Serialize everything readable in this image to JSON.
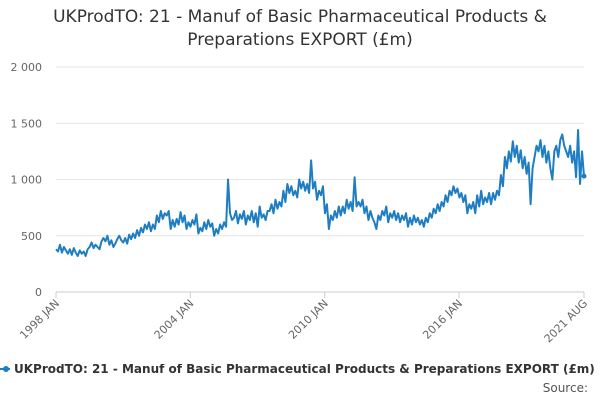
{
  "chart_data": {
    "type": "line",
    "title_line1": "UKProdTO: 21 - Manuf of Basic Pharmaceutical Products &",
    "title_line2": "Preparations EXPORT (£m)",
    "xlabel": "",
    "ylabel": "",
    "ylim": [
      0,
      2000
    ],
    "y_ticks": [
      "2 000",
      "1 500",
      "1 000",
      "500",
      "0"
    ],
    "x_ticks": [
      "1998 JAN",
      "2004 JAN",
      "2010 JAN",
      "2016 JAN",
      "2021 AUG"
    ],
    "series_color": "#1f7dc1",
    "series": [
      {
        "name": "UKProdTO: 21 - Manuf of Basic Pharmaceutical Products & Preparations EXPORT (£m)",
        "x_start": "1998 JAN",
        "x_end": "2021 AUG",
        "values": [
          380,
          360,
          420,
          350,
          400,
          370,
          340,
          380,
          330,
          390,
          350,
          320,
          370,
          340,
          360,
          320,
          380,
          400,
          440,
          390,
          420,
          400,
          380,
          450,
          480,
          450,
          500,
          420,
          460,
          400,
          430,
          470,
          500,
          460,
          440,
          480,
          430,
          510,
          470,
          520,
          480,
          550,
          500,
          570,
          530,
          600,
          560,
          620,
          540,
          600,
          560,
          680,
          620,
          720,
          650,
          700,
          680,
          720,
          560,
          640,
          580,
          650,
          600,
          710,
          620,
          680,
          560,
          620,
          580,
          640,
          600,
          690,
          520,
          570,
          540,
          620,
          560,
          640,
          580,
          610,
          500,
          560,
          520,
          600,
          560,
          620,
          580,
          1000,
          700,
          640,
          660,
          720,
          610,
          690,
          650,
          720,
          600,
          680,
          640,
          720,
          620,
          700,
          580,
          760,
          660,
          690,
          640,
          720,
          720,
          780,
          700,
          820,
          740,
          800,
          760,
          900,
          800,
          960,
          880,
          940,
          860,
          900,
          840,
          1000,
          920,
          980,
          900,
          960,
          880,
          1170,
          920,
          980,
          820,
          900,
          860,
          940,
          700,
          780,
          560,
          680,
          640,
          720,
          660,
          760,
          680,
          760,
          700,
          820,
          740,
          800,
          720,
          1020,
          760,
          800,
          760,
          820,
          700,
          760,
          640,
          720,
          660,
          620,
          560,
          680,
          640,
          720,
          680,
          760,
          620,
          700,
          660,
          720,
          640,
          700,
          620,
          680,
          640,
          700,
          580,
          660,
          600,
          680,
          620,
          660,
          600,
          640,
          580,
          660,
          620,
          700,
          660,
          740,
          700,
          780,
          720,
          800,
          760,
          860,
          800,
          900,
          860,
          940,
          880,
          920,
          840,
          880,
          800,
          860,
          700,
          780,
          740,
          800,
          700,
          860,
          760,
          900,
          780,
          840,
          800,
          880,
          780,
          880,
          820,
          900,
          860,
          1040,
          940,
          1200,
          1100,
          1250,
          1160,
          1340,
          1200,
          1300,
          1150,
          1260,
          1100,
          1200,
          1050,
          1150,
          780,
          1100,
          1200,
          1300,
          1250,
          1350,
          1200,
          1300,
          1150,
          1250,
          1100,
          1000,
          1250,
          1300,
          1200,
          1350,
          1400,
          1300,
          1250,
          1200,
          1300,
          1150,
          1250,
          1020,
          1440,
          960,
          1250,
          1030
        ]
      }
    ],
    "source_label": "Source:"
  }
}
